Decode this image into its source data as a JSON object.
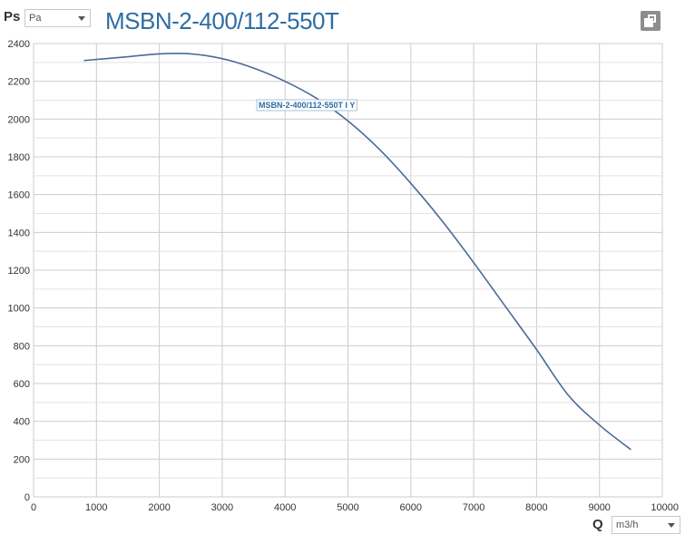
{
  "header": {
    "y_axis_name": "Ps",
    "y_unit": "Pa",
    "title": "MSBN-2-400/112-550T",
    "copy_icon": "copy-icon"
  },
  "footer": {
    "x_axis_name": "Q",
    "x_unit": "m3/h"
  },
  "colors": {
    "curve": "#4a6a96",
    "title": "#2e6da4",
    "grid": "#cccccc"
  },
  "chart_data": {
    "type": "line",
    "title": "MSBN-2-400/112-550T",
    "xlabel": "Q",
    "ylabel": "Ps",
    "xlim": [
      0,
      10000
    ],
    "ylim": [
      0,
      2400
    ],
    "x_ticks": [
      0,
      1000,
      2000,
      3000,
      4000,
      5000,
      6000,
      7000,
      8000,
      9000,
      10000
    ],
    "y_ticks": [
      0,
      200,
      400,
      600,
      800,
      1000,
      1200,
      1400,
      1600,
      1800,
      2000,
      2200,
      2400
    ],
    "grid": true,
    "series": [
      {
        "name": "MSBN-2-400/112-550T I Y",
        "x": [
          800,
          1500,
          2000,
          2500,
          3000,
          3500,
          4000,
          4500,
          5000,
          5500,
          6000,
          6500,
          7000,
          7500,
          8000,
          8500,
          9000,
          9500
        ],
        "y": [
          2310,
          2330,
          2345,
          2345,
          2320,
          2270,
          2200,
          2110,
          1990,
          1840,
          1660,
          1460,
          1240,
          1010,
          780,
          540,
          380,
          250
        ]
      }
    ]
  }
}
